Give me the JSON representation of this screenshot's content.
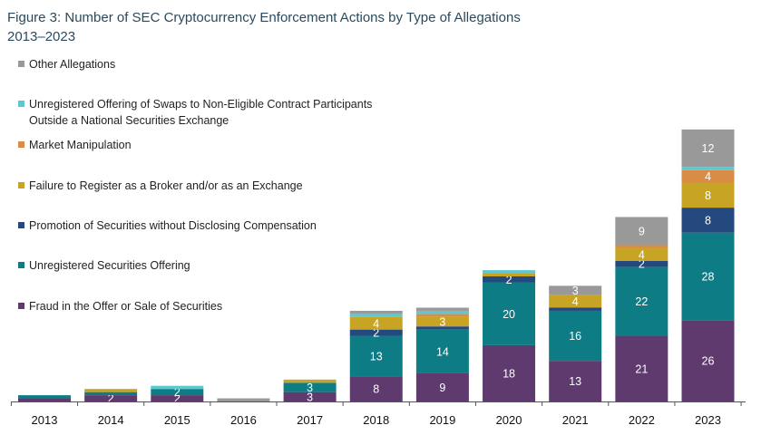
{
  "chart_data": {
    "type": "bar",
    "stacked": true,
    "title": "Figure 3: Number of SEC Cryptocurrency Enforcement Actions by Type of Allegations",
    "subtitle": "2013–2023",
    "xlabel": "",
    "ylabel": "",
    "ylim": [
      0,
      110
    ],
    "grid": false,
    "legend_position": "top-left",
    "categories": [
      "2013",
      "2014",
      "2015",
      "2016",
      "2017",
      "2018",
      "2019",
      "2020",
      "2021",
      "2022",
      "2023"
    ],
    "series": [
      {
        "name": "Fraud in the Offer or Sale of Securities",
        "color": "#5e3a6e",
        "values": [
          1,
          2,
          2,
          0,
          3,
          8,
          9,
          18,
          13,
          21,
          26
        ],
        "labels": [
          "",
          "2",
          "2",
          "",
          "3",
          "8",
          "9",
          "18",
          "13",
          "21",
          "26"
        ]
      },
      {
        "name": "Unregistered Securities Offering",
        "color": "#0e7c85",
        "values": [
          1,
          1,
          2,
          0,
          3,
          13,
          14,
          20,
          16,
          22,
          28
        ],
        "labels": [
          "",
          "",
          "2",
          "",
          "3",
          "13",
          "14",
          "20",
          "16",
          "22",
          "28"
        ]
      },
      {
        "name": "Promotion of Securities without Disclosing Compensation",
        "color": "#24497f",
        "values": [
          0,
          0,
          0,
          0,
          0,
          2,
          1,
          2,
          1,
          2,
          8
        ],
        "labels": [
          "",
          "",
          "",
          "",
          "",
          "2",
          "",
          "2",
          "",
          "2",
          "8"
        ]
      },
      {
        "name": "Failure to Register as a Broker and/or as an Exchange",
        "color": "#c8a424",
        "values": [
          0,
          1,
          0,
          0,
          1,
          4,
          3,
          1,
          4,
          4,
          8
        ],
        "labels": [
          "",
          "",
          "",
          "",
          "",
          "4",
          "3",
          "",
          "4",
          "4",
          "8"
        ]
      },
      {
        "name": "Market Manipulation",
        "color": "#d98c46",
        "values": [
          0,
          0,
          0,
          0,
          0,
          0,
          1,
          0,
          0,
          1,
          4
        ],
        "labels": [
          "",
          "",
          "",
          "",
          "",
          "",
          "",
          "",
          "",
          "",
          "4"
        ]
      },
      {
        "name": "Unregistered Offering of Swaps to Non-Eligible Contract Participants Outside a National Securities Exchange",
        "color": "#5cc8cf",
        "values": [
          0,
          0,
          1,
          0,
          0,
          1,
          1,
          1,
          0,
          0,
          1
        ],
        "labels": [
          "",
          "",
          "",
          "",
          "",
          "",
          "",
          "",
          "",
          "",
          ""
        ]
      },
      {
        "name": "Other Allegations",
        "color": "#999999",
        "values": [
          0,
          0,
          0,
          1,
          0,
          1,
          1,
          0,
          3,
          9,
          12
        ],
        "labels": [
          "",
          "",
          "",
          "",
          "",
          "",
          "",
          "",
          "3",
          "9",
          "12"
        ]
      }
    ],
    "legend": [
      {
        "line1": "Other Allegations",
        "line2": "",
        "color": "#999999"
      },
      {
        "line1": "Unregistered Offering of Swaps to Non-Eligible Contract Participants",
        "line2": "Outside a National Securities Exchange",
        "color": "#5cc8cf"
      },
      {
        "line1": "Market Manipulation",
        "line2": "",
        "color": "#d98c46"
      },
      {
        "line1": "Failure to Register as a Broker and/or as an Exchange",
        "line2": "",
        "color": "#c8a424"
      },
      {
        "line1": "Promotion of Securities without Disclosing Compensation",
        "line2": "",
        "color": "#24497f"
      },
      {
        "line1": "Unregistered Securities Offering",
        "line2": "",
        "color": "#0e7c85"
      },
      {
        "line1": "Fraud in the Offer or Sale of Securities",
        "line2": "",
        "color": "#5e3a6e"
      }
    ]
  }
}
